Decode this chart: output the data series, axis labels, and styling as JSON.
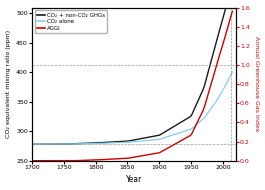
{
  "ylabel_left": "CO₂ equivalent mixing ratio (ppm)",
  "ylabel_right": "Annual Greenhouse Gas Index",
  "xlabel": "Year",
  "ylim_left": [
    250,
    510
  ],
  "ylim_right": [
    0.0,
    1.6
  ],
  "yticks_left": [
    250,
    300,
    350,
    400,
    450,
    500
  ],
  "yticks_right": [
    0.0,
    0.2,
    0.4,
    0.6,
    0.8,
    1.0,
    1.2,
    1.4,
    1.6
  ],
  "xlim": [
    1700,
    2020
  ],
  "xticks": [
    1700,
    1750,
    1800,
    1850,
    1900,
    1950,
    2000
  ],
  "legend_labels": [
    "CO₂ + non-CO₂ GHGs",
    "CO₂ alone",
    "AGGI"
  ],
  "line_colors": [
    "#1a1a1a",
    "#87ceeb",
    "#cc0000"
  ],
  "background_color": "#ffffff",
  "dashed_line_year": 2012,
  "dashed_hline_ppm": 278.8,
  "dashed_aggi": 1.0
}
